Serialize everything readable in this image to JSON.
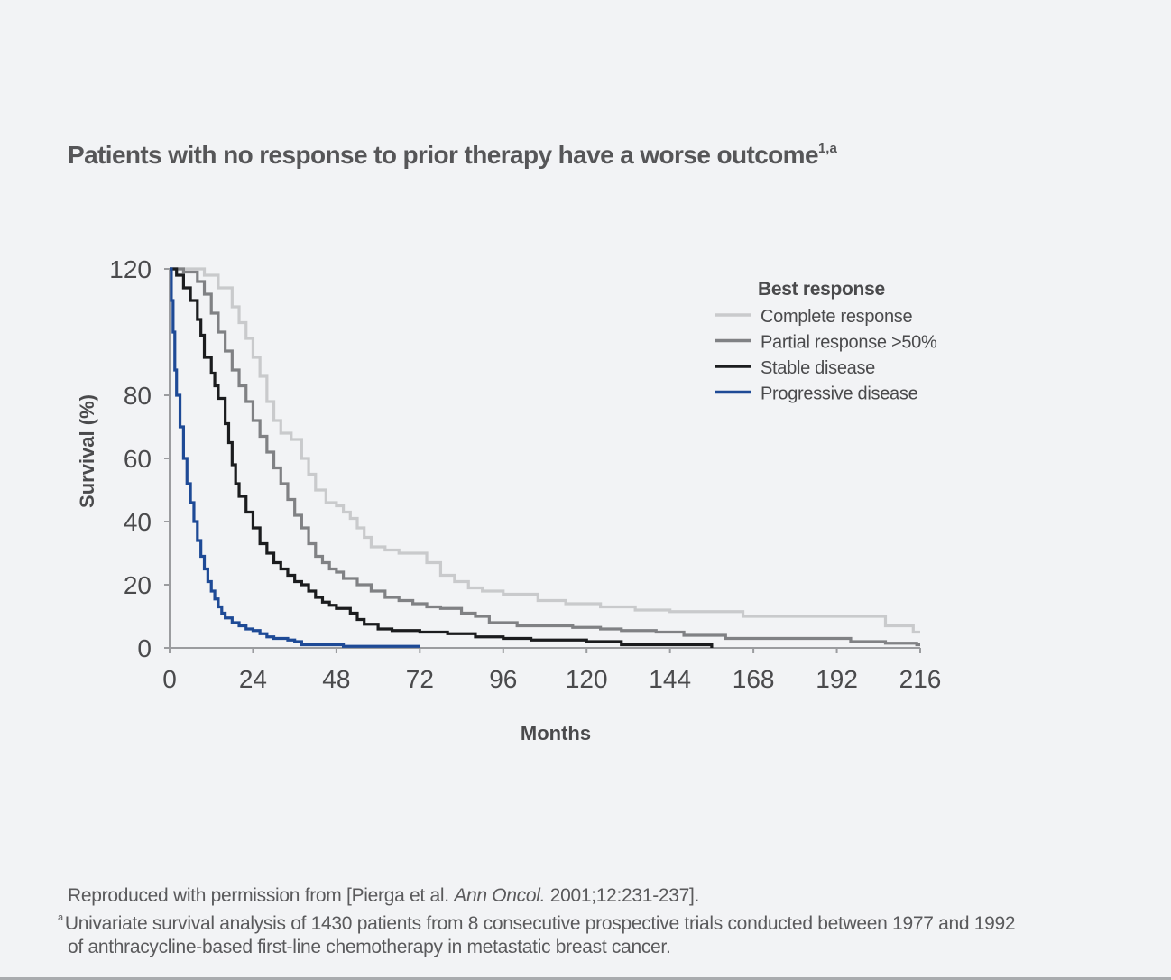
{
  "title": {
    "text": "Patients with no response to prior therapy have a worse outcome",
    "superscript": "1,a"
  },
  "chart_data": {
    "type": "line",
    "xlabel": "Months",
    "ylabel": "Survival (%)",
    "xlim": [
      0,
      216
    ],
    "ylim": [
      0,
      120
    ],
    "xticks": [
      0,
      24,
      48,
      72,
      96,
      120,
      144,
      168,
      192,
      216
    ],
    "yticks": [
      0,
      20,
      40,
      60,
      80,
      120
    ],
    "legend": {
      "title": "Best response",
      "position": "top-right"
    },
    "series": [
      {
        "name": "Complete response",
        "color": "#c9cacc",
        "step": true,
        "points": [
          [
            0,
            120
          ],
          [
            6,
            120
          ],
          [
            10,
            118
          ],
          [
            14,
            114
          ],
          [
            18,
            108
          ],
          [
            20,
            103
          ],
          [
            22,
            98
          ],
          [
            24,
            92
          ],
          [
            26,
            86
          ],
          [
            28,
            78
          ],
          [
            30,
            72
          ],
          [
            32,
            68
          ],
          [
            35,
            66
          ],
          [
            38,
            60
          ],
          [
            40,
            55
          ],
          [
            42,
            50
          ],
          [
            45,
            46
          ],
          [
            48,
            45
          ],
          [
            50,
            43
          ],
          [
            52,
            41
          ],
          [
            54,
            38
          ],
          [
            56,
            35
          ],
          [
            58,
            32
          ],
          [
            62,
            31
          ],
          [
            66,
            30
          ],
          [
            70,
            30
          ],
          [
            74,
            27
          ],
          [
            78,
            23
          ],
          [
            82,
            21
          ],
          [
            86,
            19
          ],
          [
            90,
            18
          ],
          [
            96,
            17
          ],
          [
            106,
            15
          ],
          [
            114,
            14
          ],
          [
            120,
            14
          ],
          [
            124,
            13
          ],
          [
            134,
            12
          ],
          [
            144,
            11.5
          ],
          [
            154,
            11.5
          ],
          [
            165,
            10
          ],
          [
            180,
            10
          ],
          [
            196,
            10
          ],
          [
            206,
            7
          ],
          [
            214,
            5
          ],
          [
            216,
            5
          ]
        ]
      },
      {
        "name": "Partial response >50%",
        "color": "#808184",
        "step": true,
        "points": [
          [
            0,
            120
          ],
          [
            4,
            119
          ],
          [
            8,
            116
          ],
          [
            10,
            112
          ],
          [
            12,
            106
          ],
          [
            14,
            100
          ],
          [
            16,
            94
          ],
          [
            18,
            88
          ],
          [
            20,
            83
          ],
          [
            22,
            78
          ],
          [
            24,
            72
          ],
          [
            26,
            67
          ],
          [
            28,
            62
          ],
          [
            30,
            57
          ],
          [
            32,
            52
          ],
          [
            34,
            47
          ],
          [
            36,
            42
          ],
          [
            38,
            38
          ],
          [
            40,
            33
          ],
          [
            42,
            29
          ],
          [
            44,
            27
          ],
          [
            46,
            25
          ],
          [
            48,
            24
          ],
          [
            50,
            22
          ],
          [
            54,
            20
          ],
          [
            58,
            18
          ],
          [
            62,
            16
          ],
          [
            66,
            15
          ],
          [
            70,
            14
          ],
          [
            74,
            13
          ],
          [
            78,
            12.5
          ],
          [
            84,
            11
          ],
          [
            88,
            10
          ],
          [
            92,
            8
          ],
          [
            100,
            7
          ],
          [
            108,
            7
          ],
          [
            116,
            6.5
          ],
          [
            124,
            6
          ],
          [
            130,
            5.5
          ],
          [
            140,
            5
          ],
          [
            148,
            4
          ],
          [
            160,
            3
          ],
          [
            184,
            3
          ],
          [
            196,
            2
          ],
          [
            206,
            1.5
          ],
          [
            215,
            1
          ],
          [
            216,
            1
          ]
        ]
      },
      {
        "name": "Stable disease",
        "color": "#1b1c1e",
        "step": true,
        "points": [
          [
            0,
            120
          ],
          [
            2,
            118
          ],
          [
            4,
            114
          ],
          [
            6,
            110
          ],
          [
            8,
            104
          ],
          [
            9,
            99
          ],
          [
            10,
            92
          ],
          [
            12,
            87
          ],
          [
            13,
            83
          ],
          [
            14,
            79
          ],
          [
            16,
            71
          ],
          [
            17,
            65
          ],
          [
            18,
            58
          ],
          [
            19,
            52
          ],
          [
            20,
            48
          ],
          [
            22,
            43
          ],
          [
            24,
            38
          ],
          [
            26,
            33
          ],
          [
            28,
            30
          ],
          [
            30,
            27
          ],
          [
            32,
            25
          ],
          [
            34,
            23
          ],
          [
            36,
            21
          ],
          [
            38,
            20
          ],
          [
            40,
            18
          ],
          [
            42,
            16
          ],
          [
            44,
            14.5
          ],
          [
            46,
            13.5
          ],
          [
            48,
            12.5
          ],
          [
            52,
            11
          ],
          [
            54,
            9
          ],
          [
            56,
            7.5
          ],
          [
            60,
            6
          ],
          [
            64,
            5.5
          ],
          [
            68,
            5.5
          ],
          [
            72,
            5
          ],
          [
            80,
            4.5
          ],
          [
            88,
            3.5
          ],
          [
            96,
            3
          ],
          [
            104,
            2.5
          ],
          [
            112,
            2.5
          ],
          [
            120,
            2
          ],
          [
            130,
            1
          ],
          [
            150,
            1
          ],
          [
            156,
            0
          ]
        ]
      },
      {
        "name": "Progressive disease",
        "color": "#1e4a96",
        "step": true,
        "points": [
          [
            0,
            120
          ],
          [
            0.5,
            110
          ],
          [
            1,
            100
          ],
          [
            1.5,
            88
          ],
          [
            2,
            80
          ],
          [
            3,
            70
          ],
          [
            4,
            60
          ],
          [
            5,
            52
          ],
          [
            6,
            46
          ],
          [
            7,
            40
          ],
          [
            8,
            34
          ],
          [
            9,
            29
          ],
          [
            10,
            25
          ],
          [
            11,
            21
          ],
          [
            12,
            18
          ],
          [
            13,
            15.5
          ],
          [
            14,
            13
          ],
          [
            15,
            11
          ],
          [
            16,
            9.5
          ],
          [
            18,
            8
          ],
          [
            20,
            7
          ],
          [
            22,
            6
          ],
          [
            24,
            5.5
          ],
          [
            26,
            4.5
          ],
          [
            28,
            3.5
          ],
          [
            30,
            3
          ],
          [
            34,
            2.5
          ],
          [
            36,
            2
          ],
          [
            38,
            1
          ],
          [
            42,
            1
          ],
          [
            50,
            0.5
          ],
          [
            60,
            0.5
          ],
          [
            72,
            0.5
          ]
        ]
      }
    ]
  },
  "footnotes": {
    "source_prefix": "Reproduced with permission from [Pierga et al. ",
    "source_journal": "Ann Oncol.",
    "source_suffix": " 2001;12:231-237].",
    "note_marker": "a",
    "note_line1": "Univariate survival analysis of 1430 patients from 8 consecutive prospective trials conducted between 1977 and 1992",
    "note_line2": "of anthracycline-based first-line chemotherapy in metastatic breast cancer."
  }
}
